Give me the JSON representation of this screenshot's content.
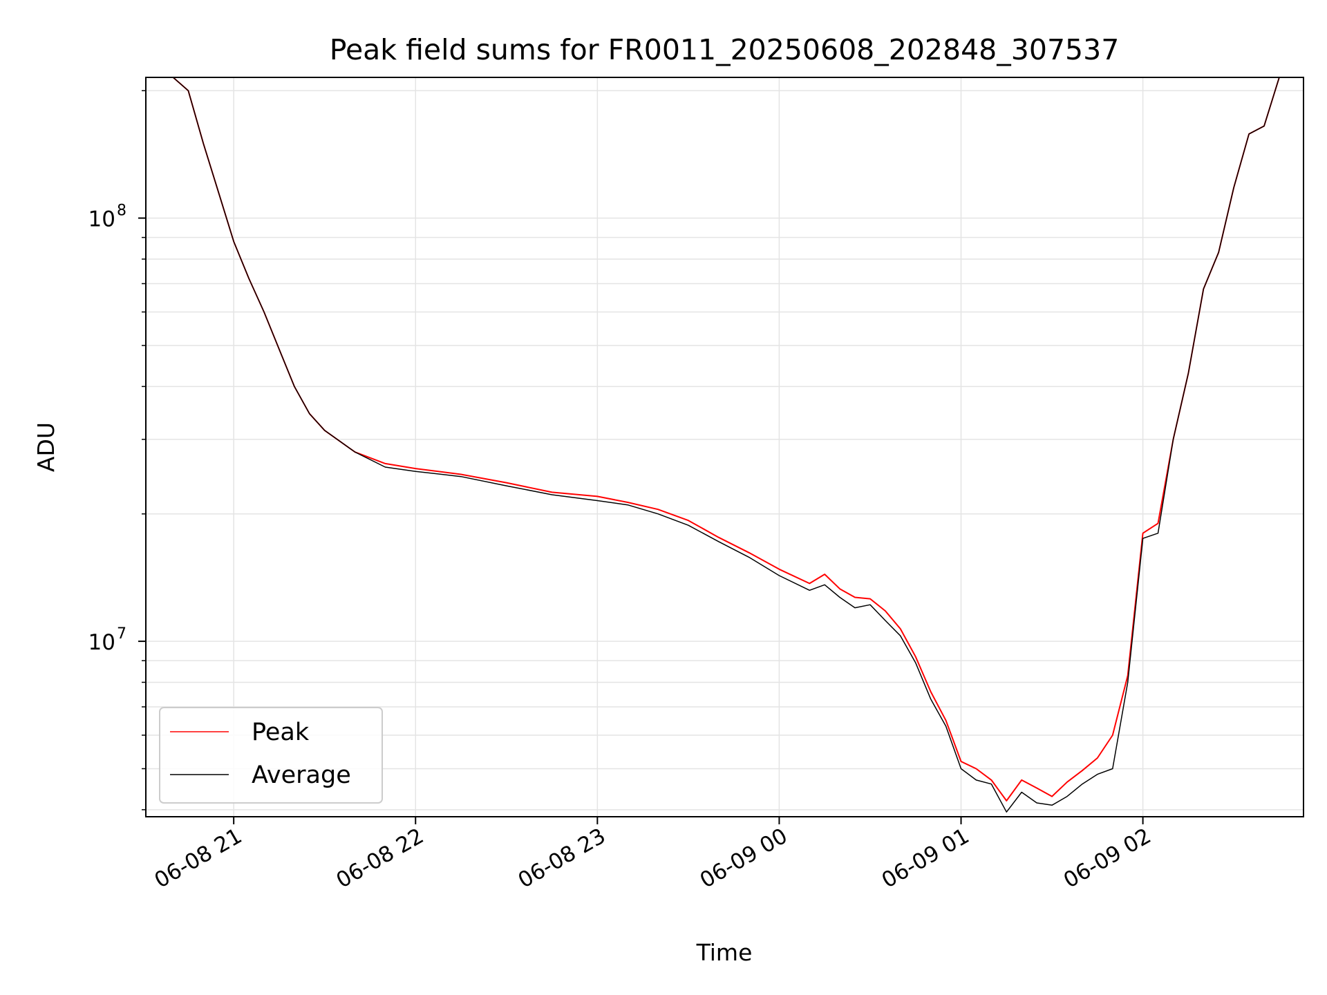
{
  "chart_data": {
    "type": "line",
    "title": "Peak field sums for FR0011_20250608_202848_307537",
    "xlabel": "Time",
    "ylabel": "ADU",
    "yscale": "log",
    "xlim": [
      "2025-06-08 20:31",
      "2025-06-09 02:53"
    ],
    "ylim": [
      3850000,
      215000000
    ],
    "x_ticks": [
      "06-08 21",
      "06-08 22",
      "06-08 23",
      "06-09 00",
      "06-09 01",
      "06-09 02"
    ],
    "y_ticks": [
      {
        "base": "10",
        "exp": "7",
        "value": 10000000
      },
      {
        "base": "10",
        "exp": "8",
        "value": 100000000
      }
    ],
    "grid": true,
    "legend_position": "lower-left",
    "series": [
      {
        "name": "Peak",
        "color": "#ff0000",
        "x": [
          "2025-06-08 20:31",
          "2025-06-08 20:40",
          "2025-06-08 20:45",
          "2025-06-08 20:50",
          "2025-06-08 20:55",
          "2025-06-08 21:00",
          "2025-06-08 21:05",
          "2025-06-08 21:10",
          "2025-06-08 21:15",
          "2025-06-08 21:20",
          "2025-06-08 21:25",
          "2025-06-08 21:30",
          "2025-06-08 21:40",
          "2025-06-08 21:50",
          "2025-06-08 22:00",
          "2025-06-08 22:15",
          "2025-06-08 22:30",
          "2025-06-08 22:45",
          "2025-06-08 23:00",
          "2025-06-08 23:10",
          "2025-06-08 23:20",
          "2025-06-08 23:30",
          "2025-06-08 23:40",
          "2025-06-08 23:50",
          "2025-06-09 00:00",
          "2025-06-09 00:10",
          "2025-06-09 00:15",
          "2025-06-09 00:20",
          "2025-06-09 00:25",
          "2025-06-09 00:30",
          "2025-06-09 00:35",
          "2025-06-09 00:40",
          "2025-06-09 00:45",
          "2025-06-09 00:50",
          "2025-06-09 00:55",
          "2025-06-09 01:00",
          "2025-06-09 01:05",
          "2025-06-09 01:10",
          "2025-06-09 01:15",
          "2025-06-09 01:20",
          "2025-06-09 01:25",
          "2025-06-09 01:30",
          "2025-06-09 01:35",
          "2025-06-09 01:40",
          "2025-06-09 01:45",
          "2025-06-09 01:50",
          "2025-06-09 01:55",
          "2025-06-09 02:00",
          "2025-06-09 02:05",
          "2025-06-09 02:10",
          "2025-06-09 02:15",
          "2025-06-09 02:20",
          "2025-06-09 02:25",
          "2025-06-09 02:30",
          "2025-06-09 02:35",
          "2025-06-09 02:40",
          "2025-06-09 02:45",
          "2025-06-09 02:53"
        ],
        "y": [
          215000000,
          215000000,
          200000000,
          150000000,
          115000000,
          88000000,
          72000000,
          60000000,
          49000000,
          40000000,
          34500000,
          31500000,
          28000000,
          26300000,
          25600000,
          24800000,
          23700000,
          22500000,
          22000000,
          21300000,
          20500000,
          19300000,
          17600000,
          16200000,
          14800000,
          13700000,
          14400000,
          13300000,
          12700000,
          12600000,
          11800000,
          10700000,
          9200000,
          7600000,
          6500000,
          5200000,
          5000000,
          4700000,
          4200000,
          4700000,
          4500000,
          4300000,
          4650000,
          4950000,
          5300000,
          6000000,
          8300000,
          18000000,
          19000000,
          30000000,
          43000000,
          68000000,
          83000000,
          118000000,
          158000000,
          165000000,
          215000000,
          215000000
        ]
      },
      {
        "name": "Average",
        "color": "#000000",
        "x": [
          "2025-06-08 20:31",
          "2025-06-08 20:40",
          "2025-06-08 20:45",
          "2025-06-08 20:50",
          "2025-06-08 20:55",
          "2025-06-08 21:00",
          "2025-06-08 21:05",
          "2025-06-08 21:10",
          "2025-06-08 21:15",
          "2025-06-08 21:20",
          "2025-06-08 21:25",
          "2025-06-08 21:30",
          "2025-06-08 21:40",
          "2025-06-08 21:50",
          "2025-06-08 22:00",
          "2025-06-08 22:15",
          "2025-06-08 22:30",
          "2025-06-08 22:45",
          "2025-06-08 23:00",
          "2025-06-08 23:10",
          "2025-06-08 23:20",
          "2025-06-08 23:30",
          "2025-06-08 23:40",
          "2025-06-08 23:50",
          "2025-06-09 00:00",
          "2025-06-09 00:10",
          "2025-06-09 00:15",
          "2025-06-09 00:20",
          "2025-06-09 00:25",
          "2025-06-09 00:30",
          "2025-06-09 00:35",
          "2025-06-09 00:40",
          "2025-06-09 00:45",
          "2025-06-09 00:50",
          "2025-06-09 00:55",
          "2025-06-09 01:00",
          "2025-06-09 01:05",
          "2025-06-09 01:10",
          "2025-06-09 01:15",
          "2025-06-09 01:20",
          "2025-06-09 01:25",
          "2025-06-09 01:30",
          "2025-06-09 01:35",
          "2025-06-09 01:40",
          "2025-06-09 01:45",
          "2025-06-09 01:50",
          "2025-06-09 01:55",
          "2025-06-09 02:00",
          "2025-06-09 02:05",
          "2025-06-09 02:10",
          "2025-06-09 02:15",
          "2025-06-09 02:20",
          "2025-06-09 02:25",
          "2025-06-09 02:30",
          "2025-06-09 02:35",
          "2025-06-09 02:40",
          "2025-06-09 02:45",
          "2025-06-09 02:53"
        ],
        "y": [
          215000000,
          215000000,
          200000000,
          150000000,
          115000000,
          88000000,
          72000000,
          60000000,
          49000000,
          40000000,
          34500000,
          31500000,
          28000000,
          25800000,
          25200000,
          24500000,
          23300000,
          22200000,
          21500000,
          21000000,
          20000000,
          18800000,
          17200000,
          15800000,
          14300000,
          13200000,
          13600000,
          12700000,
          12000000,
          12200000,
          11200000,
          10300000,
          8900000,
          7300000,
          6300000,
          5000000,
          4700000,
          4600000,
          3950000,
          4400000,
          4150000,
          4100000,
          4300000,
          4600000,
          4850000,
          5000000,
          8000000,
          17500000,
          18000000,
          30000000,
          43000000,
          68000000,
          83000000,
          118000000,
          158000000,
          165000000,
          215000000,
          215000000
        ]
      }
    ]
  }
}
